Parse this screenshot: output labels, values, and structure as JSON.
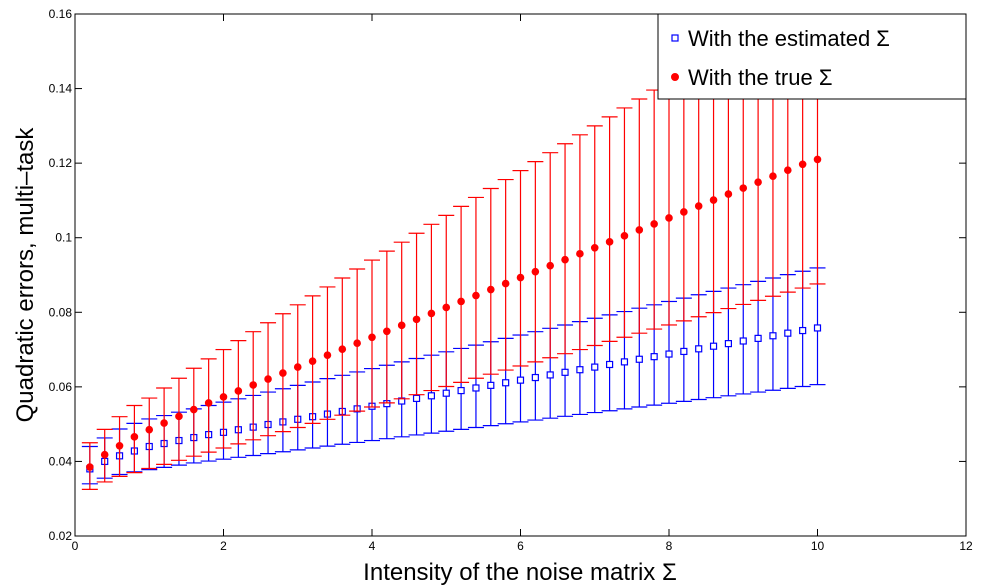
{
  "chart_data": {
    "type": "scatter",
    "xlabel": "Intensity of the noise matrix Σ",
    "ylabel": "Quadratic errors, multi–task",
    "xlim": [
      0,
      12
    ],
    "ylim": [
      0.02,
      0.16
    ],
    "xticks": [
      0,
      2,
      4,
      6,
      8,
      10,
      12
    ],
    "yticks": [
      0.02,
      0.04,
      0.06,
      0.08,
      0.1,
      0.12,
      0.14,
      0.16
    ],
    "xtick_labels": [
      "0",
      "2",
      "4",
      "6",
      "8",
      "10",
      "12"
    ],
    "ytick_labels": [
      "0.02",
      "0.04",
      "0.06",
      "0.08",
      "0.1",
      "0.12",
      "0.14",
      "0.16"
    ],
    "grid": false,
    "legend_position": "top-right",
    "error_bars": true,
    "series": [
      {
        "name": "With the estimated Σ",
        "color": "#0000ff",
        "marker": "square",
        "x": [
          0.2,
          0.4,
          0.6,
          0.8,
          1.0,
          1.2,
          1.4,
          1.6,
          1.8,
          2.0,
          2.2,
          2.4,
          2.6,
          2.8,
          3.0,
          3.2,
          3.4,
          3.6,
          3.8,
          4.0,
          4.2,
          4.4,
          4.6,
          4.8,
          5.0,
          5.2,
          5.4,
          5.6,
          5.8,
          6.0,
          6.2,
          6.4,
          6.6,
          6.8,
          7.0,
          7.2,
          7.4,
          7.6,
          7.8,
          8.0,
          8.2,
          8.4,
          8.6,
          8.8,
          9.0,
          9.2,
          9.4,
          9.6,
          9.8,
          10.0
        ],
        "y": [
          0.038,
          0.04,
          0.0415,
          0.0428,
          0.044,
          0.0448,
          0.0456,
          0.0464,
          0.0472,
          0.0478,
          0.0485,
          0.0492,
          0.0499,
          0.0506,
          0.0513,
          0.052,
          0.0527,
          0.0534,
          0.0541,
          0.0548,
          0.0555,
          0.0562,
          0.0569,
          0.0576,
          0.0583,
          0.059,
          0.0597,
          0.0604,
          0.0611,
          0.0618,
          0.0625,
          0.0632,
          0.0639,
          0.0646,
          0.0653,
          0.066,
          0.0667,
          0.0674,
          0.0681,
          0.0688,
          0.0695,
          0.0702,
          0.0709,
          0.0716,
          0.0723,
          0.073,
          0.0737,
          0.0744,
          0.0751,
          0.0758
        ],
        "y_lower": [
          0.034,
          0.0355,
          0.0365,
          0.0372,
          0.0378,
          0.0384,
          0.039,
          0.0396,
          0.0401,
          0.0406,
          0.0411,
          0.0416,
          0.0421,
          0.0426,
          0.0431,
          0.0436,
          0.0441,
          0.0446,
          0.0451,
          0.0456,
          0.0461,
          0.0466,
          0.0471,
          0.0476,
          0.0481,
          0.0486,
          0.0491,
          0.0496,
          0.0501,
          0.0506,
          0.0511,
          0.0516,
          0.0521,
          0.0526,
          0.0531,
          0.0536,
          0.0541,
          0.0546,
          0.0551,
          0.0556,
          0.0561,
          0.0566,
          0.0571,
          0.0576,
          0.0581,
          0.0586,
          0.0591,
          0.0596,
          0.0601,
          0.0606
        ],
        "y_upper": [
          0.044,
          0.0463,
          0.0487,
          0.0502,
          0.0514,
          0.0523,
          0.0532,
          0.0541,
          0.055,
          0.0559,
          0.0568,
          0.0577,
          0.0586,
          0.0595,
          0.0604,
          0.0613,
          0.0622,
          0.0631,
          0.064,
          0.0649,
          0.0658,
          0.0667,
          0.0676,
          0.0685,
          0.0694,
          0.0703,
          0.0712,
          0.0721,
          0.073,
          0.0739,
          0.0748,
          0.0757,
          0.0766,
          0.0775,
          0.0784,
          0.0793,
          0.0802,
          0.0811,
          0.082,
          0.0829,
          0.0838,
          0.0847,
          0.0856,
          0.0865,
          0.0874,
          0.0883,
          0.0892,
          0.0901,
          0.091,
          0.0919
        ]
      },
      {
        "name": "With the true Σ",
        "color": "#ff0000",
        "marker": "circle",
        "x": [
          0.2,
          0.4,
          0.6,
          0.8,
          1.0,
          1.2,
          1.4,
          1.6,
          1.8,
          2.0,
          2.2,
          2.4,
          2.6,
          2.8,
          3.0,
          3.2,
          3.4,
          3.6,
          3.8,
          4.0,
          4.2,
          4.4,
          4.6,
          4.8,
          5.0,
          5.2,
          5.4,
          5.6,
          5.8,
          6.0,
          6.2,
          6.4,
          6.6,
          6.8,
          7.0,
          7.2,
          7.4,
          7.6,
          7.8,
          8.0,
          8.2,
          8.4,
          8.6,
          8.8,
          9.0,
          9.2,
          9.4,
          9.6,
          9.8,
          10.0
        ],
        "y": [
          0.0385,
          0.0418,
          0.0442,
          0.0466,
          0.0485,
          0.0503,
          0.0521,
          0.0539,
          0.0557,
          0.0573,
          0.0589,
          0.0605,
          0.0621,
          0.0637,
          0.0653,
          0.0669,
          0.0685,
          0.0701,
          0.0717,
          0.0733,
          0.0749,
          0.0765,
          0.0781,
          0.0797,
          0.0813,
          0.0829,
          0.0845,
          0.0861,
          0.0877,
          0.0893,
          0.0909,
          0.0925,
          0.0941,
          0.0957,
          0.0973,
          0.0989,
          0.1005,
          0.1021,
          0.1037,
          0.1053,
          0.1069,
          0.1085,
          0.1101,
          0.1117,
          0.1133,
          0.1149,
          0.1165,
          0.1181,
          0.1197,
          0.121
        ],
        "y_lower": [
          0.0325,
          0.0345,
          0.036,
          0.037,
          0.0381,
          0.0392,
          0.0403,
          0.0414,
          0.0425,
          0.0436,
          0.0447,
          0.0458,
          0.0469,
          0.048,
          0.0491,
          0.0502,
          0.0513,
          0.0524,
          0.0535,
          0.0546,
          0.0557,
          0.0568,
          0.0579,
          0.059,
          0.0601,
          0.0612,
          0.0623,
          0.0634,
          0.0645,
          0.0656,
          0.0667,
          0.0678,
          0.0689,
          0.07,
          0.0711,
          0.0722,
          0.0733,
          0.0744,
          0.0755,
          0.0766,
          0.0777,
          0.0788,
          0.0799,
          0.081,
          0.0821,
          0.0832,
          0.0843,
          0.0854,
          0.0865,
          0.0876
        ],
        "y_upper": [
          0.045,
          0.0486,
          0.052,
          0.055,
          0.057,
          0.0597,
          0.0623,
          0.065,
          0.0675,
          0.07,
          0.0724,
          0.0748,
          0.0772,
          0.0796,
          0.082,
          0.0844,
          0.0868,
          0.0892,
          0.0916,
          0.094,
          0.0964,
          0.0988,
          0.1012,
          0.1036,
          0.106,
          0.1084,
          0.1108,
          0.1132,
          0.1156,
          0.118,
          0.1204,
          0.1228,
          0.1252,
          0.1276,
          0.13,
          0.1324,
          0.1348,
          0.1372,
          0.1396,
          0.142,
          0.1444,
          0.1468,
          0.1492,
          0.1516,
          0.154,
          0.1564,
          0.1588,
          0.1612,
          0.1636,
          0.166
        ]
      }
    ]
  }
}
